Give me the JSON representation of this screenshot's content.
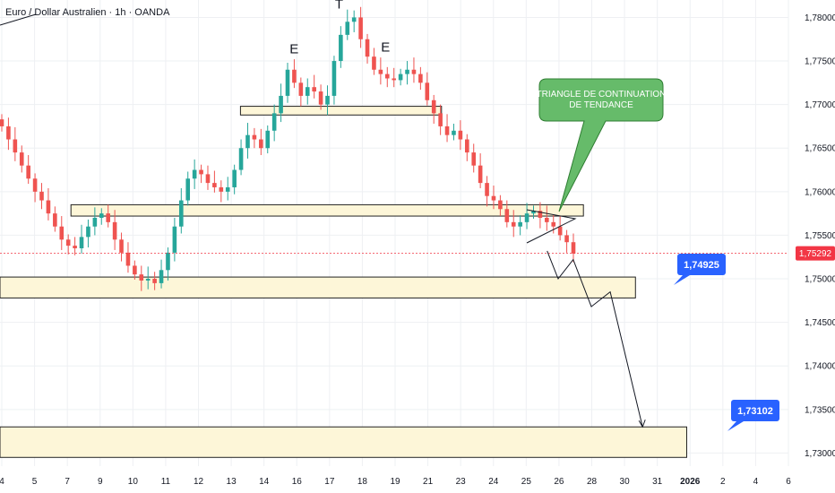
{
  "header": {
    "title": "Euro / Dollar Australien · 1h · OANDA"
  },
  "colors": {
    "up": "#26a69a",
    "down": "#ef5350",
    "zone_fill": "#fdf6d8",
    "zone_stroke": "#222222",
    "callout_fill": "#66bb6a",
    "callout_stroke": "#2e7d32",
    "tag_blue": "#2962ff",
    "last_tag": "#f23645",
    "grid": "#eef0f3"
  },
  "chart_data": {
    "type": "candlestick",
    "title": "Euro / Dollar Australien · 1h · OANDA",
    "y_ticks": [
      "1,78000",
      "1,77500",
      "1,77000",
      "1,76500",
      "1,76000",
      "1,75500",
      "1,75000",
      "1,74500",
      "1,74000",
      "1,73500",
      "1,73000"
    ],
    "ylim": [
      1.7285,
      1.782
    ],
    "x_ticks": [
      "4",
      "5",
      "7",
      "9",
      "10",
      "11",
      "12",
      "13",
      "14",
      "16",
      "17",
      "18",
      "19",
      "21",
      "23",
      "24",
      "25",
      "26",
      "28",
      "30",
      "31",
      "2026",
      "2",
      "4",
      "6"
    ],
    "last_price": "1,75292",
    "series": [
      {
        "name": "price",
        "values": [
          1.7675,
          1.766,
          1.7645,
          1.763,
          1.7615,
          1.76,
          1.759,
          1.7575,
          1.756,
          1.7545,
          1.7538,
          1.7535,
          1.7548,
          1.756,
          1.757,
          1.7575,
          1.7565,
          1.7545,
          1.753,
          1.7515,
          1.7505,
          1.7498,
          1.75,
          1.7495,
          1.751,
          1.753,
          1.756,
          1.759,
          1.7615,
          1.7625,
          1.762,
          1.761,
          1.7605,
          1.76,
          1.7605,
          1.7625,
          1.765,
          1.7665,
          1.766,
          1.765,
          1.767,
          1.769,
          1.771,
          1.774,
          1.7725,
          1.771,
          1.772,
          1.7715,
          1.77,
          1.771,
          1.775,
          1.778,
          1.7795,
          1.78,
          1.7775,
          1.7755,
          1.774,
          1.7735,
          1.773,
          1.7728,
          1.7735,
          1.774,
          1.7735,
          1.7725,
          1.7705,
          1.769,
          1.7675,
          1.7665,
          1.767,
          1.766,
          1.7645,
          1.763,
          1.761,
          1.7595,
          1.759,
          1.758,
          1.7565,
          1.756,
          1.7565,
          1.7575,
          1.7578,
          1.757,
          1.7565,
          1.756,
          1.755,
          1.7542,
          1.7529
        ]
      }
    ],
    "annotations": {
      "letters": [
        {
          "text": "E",
          "x": 0.373,
          "price": 1.7759
        },
        {
          "text": "T",
          "x": 0.43,
          "price": 1.781
        },
        {
          "text": "E",
          "x": 0.489,
          "price": 1.7761
        }
      ],
      "zones": [
        {
          "x0": 0.305,
          "x1": 0.56,
          "p_top": 1.7698,
          "p_bottom": 1.7688
        },
        {
          "x0": 0.09,
          "x1": 0.74,
          "p_top": 1.7585,
          "p_bottom": 1.7572
        },
        {
          "x0": 0.0,
          "x1": 0.806,
          "p_top": 1.7502,
          "p_bottom": 1.7478
        },
        {
          "x0": 0.0,
          "x1": 0.871,
          "p_top": 1.733,
          "p_bottom": 1.7295
        }
      ],
      "callout": {
        "lines": [
          "TRIANGLE DE CONTINUATION",
          "DE TENDANCE"
        ]
      },
      "targets": [
        {
          "label": "1,74925",
          "price": 1.74925
        },
        {
          "label": "1,73102",
          "price": 1.73102
        }
      ],
      "projection": [
        [
          0.694,
          1.7532
        ],
        [
          0.708,
          1.75
        ],
        [
          0.727,
          1.7522
        ],
        [
          0.75,
          1.7468
        ],
        [
          0.774,
          1.7485
        ],
        [
          0.815,
          1.733
        ]
      ]
    }
  }
}
